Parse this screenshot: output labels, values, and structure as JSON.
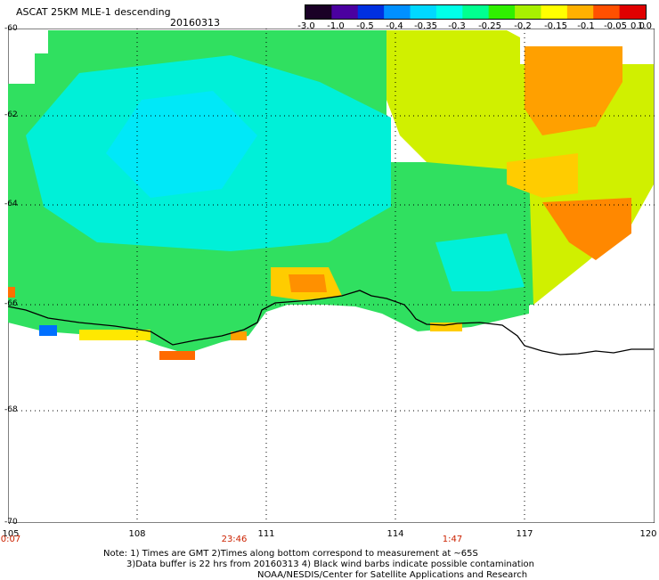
{
  "header": {
    "title": "ASCAT 25KM MLE-1 descending",
    "date": "20160313"
  },
  "colorbar": {
    "labels": [
      "-3.0",
      "-1.0",
      "-0.5",
      "-0.4",
      "-0.35",
      "-0.3",
      "-0.25",
      "-0.2",
      "-0.15",
      "-0.1",
      "-0.05",
      "0.0",
      "1.0"
    ],
    "colors": [
      "#1a0026",
      "#4b00a0",
      "#0030e0",
      "#0090ff",
      "#00d8ff",
      "#00ffe8",
      "#00ff90",
      "#30f000",
      "#a8f000",
      "#ffff00",
      "#ffb000",
      "#ff5000",
      "#e00000"
    ]
  },
  "axes": {
    "x_ticks": [
      "105",
      "108",
      "111",
      "114",
      "117",
      "120"
    ],
    "y_ticks": [
      "-60",
      "-62",
      "-64",
      "-66",
      "-68",
      "-70"
    ]
  },
  "times": [
    "0:07",
    "23:46",
    "1:47"
  ],
  "notes": [
    "Note: 1) Times are GMT 2)Times along bottom correspond to measurement at ~65S",
    "3)Data buffer is 22 hrs from 20160313 4) Black wind barbs indicate possible contamination",
    "NOAA/NESDIS/Center for Satellite Applications and Research"
  ]
}
